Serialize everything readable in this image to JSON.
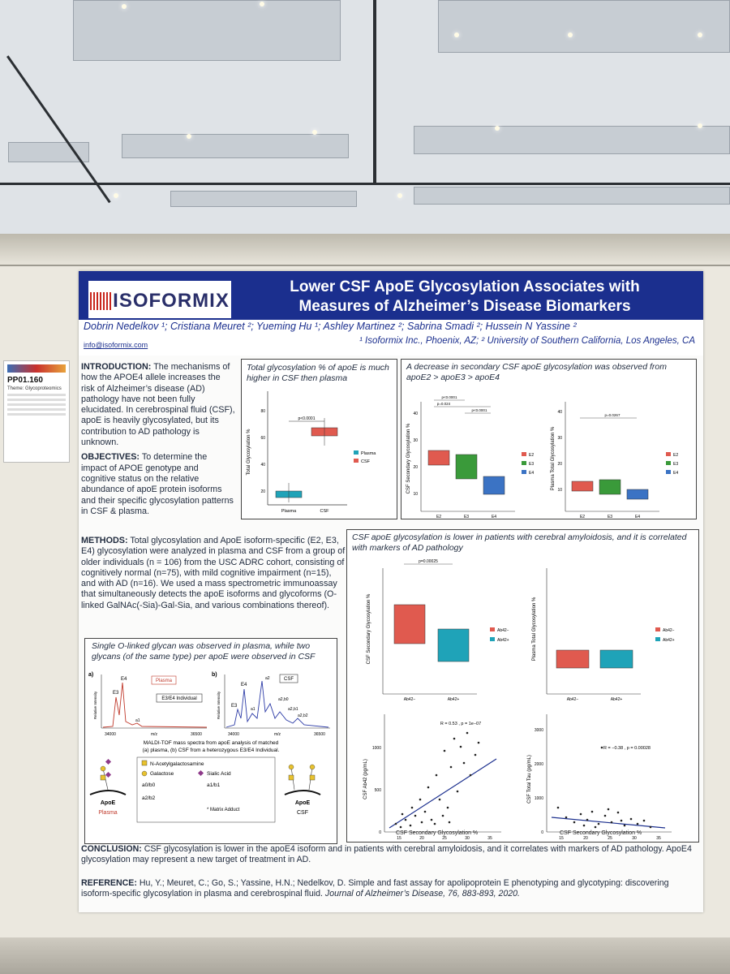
{
  "poster": {
    "logo": "ISOFORMIX",
    "title_line1": "Lower CSF ApoE Glycosylation Associates with",
    "title_line2": "Measures of Alzheimer’s Disease Biomarkers",
    "authors": "Dobrin Nedelkov ¹; Cristiana Meuret ²; Yueming Hu ¹; Ashley Martinez ²; Sabrina Smadi ²; Hussein N Yassine ²",
    "affiliations": "¹ Isoformix Inc., Phoenix, AZ; ² University of Southern California, Los Angeles, CA",
    "email": "info@isoformix.com"
  },
  "badge": {
    "code": "PP01.160",
    "theme": "Theme: Glycoproteomics"
  },
  "intro": {
    "heading": "INTRODUCTION:",
    "text": "The mechanisms of how the APOE4 allele increases the risk of Alzheimer’s disease (AD) pathology have not been fully elucidated. In cerebrospinal fluid (CSF), apoE is heavily glycosylated, but its contribution to AD pathology is unknown."
  },
  "objectives": {
    "heading": "OBJECTIVES:",
    "text": "To determine the impact of APOE genotype and cognitive status on the relative abundance of apoE protein isoforms and their specific glycosylation patterns in CSF & plasma."
  },
  "methods": {
    "heading": "METHODS:",
    "text": "Total glycosylation and ApoE isoform-specific (E2, E3, E4) glycosylation were analyzed in plasma and CSF from a group of older individuals (n = 106) from the USC ADRC cohort, consisting of cognitively normal (n=75), with mild cognitive impairment (n=15), and with AD (n=16). We used a mass spectrometric immunoassay that simultaneously detects the apoE isoforms and glycoforms (O-linked GalNAc(-Sia)-Gal-Sia, and various combinations thereof)."
  },
  "fig1": {
    "caption": "Total glycosylation % of apoE is much higher in CSF then plasma",
    "ylabel": "Total Glycosylation %",
    "pval": "p<0.0001",
    "legend": [
      "Plasma",
      "CSF"
    ],
    "xticks": [
      "Plasma",
      "CSF"
    ],
    "yticks": [
      "20",
      "40",
      "60",
      "80"
    ]
  },
  "fig2": {
    "caption": "A decrease in secondary CSF apoE glycosylation was observed from apoE2 > apoE3 > apoE4",
    "left_ylabel": "CSF Secondary Glycosylation %",
    "right_ylabel": "Plasma Total Glycosylation %",
    "pvals_left": [
      "p<0.0001",
      "p=0.024",
      "p<0.0001"
    ],
    "pval_right": "p=0.0267",
    "xticks": [
      "E2",
      "E3",
      "E4"
    ],
    "legend": [
      "E2",
      "E3",
      "E4"
    ],
    "left_yticks": [
      "10",
      "20",
      "30",
      "40"
    ],
    "right_yticks": [
      "10",
      "20",
      "30",
      "40"
    ]
  },
  "fig3": {
    "caption": "CSF apoE glycosylation is lower in patients with cerebral amyloidosis, and it is correlated with markers of AD pathology",
    "box_left_ylabel": "CSF Secondary Glycosylation %",
    "box_right_ylabel": "Plasma Total Glycosylation %",
    "pval": "p=0.00025",
    "xticks": [
      "Ab42−",
      "Ab42+"
    ],
    "legend": [
      "Ab42−",
      "Ab42+"
    ],
    "scatter_left": {
      "ylabel": "CSF Ab42 (pg/mL)",
      "xlabel": "CSF Secondary Glycosylation %",
      "stat": "R = 0.53 , p = 1e−07",
      "xticks": [
        "15",
        "20",
        "25",
        "30",
        "35"
      ],
      "yticks": [
        "0",
        "500",
        "1000"
      ]
    },
    "scatter_right": {
      "ylabel": "CSF Total Tau (pg/mL)",
      "xlabel": "CSF Secondary Glycosylation %",
      "stat": "R = −0.38 , p = 0.00028",
      "xticks": [
        "15",
        "20",
        "25",
        "30",
        "35"
      ],
      "yticks": [
        "0",
        "1000",
        "2000",
        "3000"
      ]
    }
  },
  "fig4": {
    "caption": "Single O-linked glycan was observed in plasma, while two glycans (of the same type) per apoE were observed in CSF",
    "panel_a_label": "a)",
    "panel_b_label": "b)",
    "panel_a_tag": "Plasma",
    "panel_a_sub": "E3/E4 Individual",
    "panel_b_tag": "CSF",
    "peaks_a": [
      "E4",
      "E3",
      "a1"
    ],
    "peaks_b": [
      "E4",
      "E3",
      "a1",
      "a2",
      "a2,b0",
      "a2,b1",
      "a2,b2"
    ],
    "ylabel": "Relative Intensity",
    "xlabel": "m/z",
    "xticks": [
      "34000",
      "36500"
    ],
    "spectra_caption_1": "MALDI-TOF mass spectra from apoE analysis of matched",
    "spectra_caption_2": "(a) plasma, (b) CSF from a heterozygous E3/E4 Individual.",
    "glycan_legend": [
      "N-Acetylgalactosamine",
      "Galactose",
      "Sialic Acid",
      "a0/b0",
      "a1/b1",
      "a2/b2",
      "* Matrix Adduct"
    ],
    "apoe_label": "ApoE",
    "plasma_label": "Plasma",
    "csf_label": "CSF"
  },
  "conclusion": {
    "heading": "CONCLUSION:",
    "text": "CSF glycosylation is lower in the apoE4 isoform and in patients with cerebral amyloidosis, and it correlates with markers of AD pathology. ApoE4 glycosylation may represent a new target of treatment in AD."
  },
  "reference": {
    "heading": "REFERENCE:",
    "text": "Hu, Y.; Meuret, C.; Go, S.; Yassine, H.N.; Nedelkov, D. Simple and fast assay for apolipoprotein E phenotyping and glycotyping: discovering isoform-specific glycosylation in plasma and cerebrospinal fluid.",
    "journal": "Journal of Alzheimer’s Disease, 76, 883-893, 2020."
  },
  "colors": {
    "header_blue": "#1b2f8e",
    "red": "#e05a4f",
    "green": "#3a9a3a",
    "blue": "#3b73c4",
    "teal": "#1fa3b8"
  }
}
